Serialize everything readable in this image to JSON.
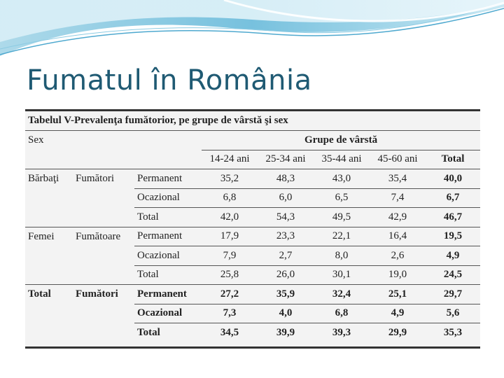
{
  "slide": {
    "title": "Fumatul în România"
  },
  "table": {
    "caption": "Tabelul V-Prevalenţa fumătorior, pe grupe de vârstă şi sex",
    "sex_header": "Sex",
    "group_header": "Grupe de vârstă",
    "columns": [
      "14-24 ani",
      "25-34 ani",
      "35-44 ani",
      "45-60 ani",
      "Total"
    ],
    "groups": [
      {
        "sex": "Bărbaţi",
        "category": "Fumători",
        "rows": [
          {
            "type": "Permanent",
            "values": [
              "35,2",
              "48,3",
              "43,0",
              "35,4",
              "40,0"
            ]
          },
          {
            "type": "Ocazional",
            "values": [
              "6,8",
              "6,0",
              "6,5",
              "7,4",
              "6,7"
            ]
          },
          {
            "type": "Total",
            "values": [
              "42,0",
              "54,3",
              "49,5",
              "42,9",
              "46,7"
            ]
          }
        ]
      },
      {
        "sex": "Femei",
        "category": "Fumătoare",
        "rows": [
          {
            "type": "Permanent",
            "values": [
              "17,9",
              "23,3",
              "22,1",
              "16,4",
              "19,5"
            ]
          },
          {
            "type": "Ocazional",
            "values": [
              "7,9",
              "2,7",
              "8,0",
              "2,6",
              "4,9"
            ]
          },
          {
            "type": "Total",
            "values": [
              "25,8",
              "26,0",
              "30,1",
              "19,0",
              "24,5"
            ]
          }
        ]
      },
      {
        "sex": "Total",
        "category": "Fumători",
        "rows": [
          {
            "type": "Permanent",
            "values": [
              "27,2",
              "35,9",
              "32,4",
              "25,1",
              "29,7"
            ]
          },
          {
            "type": "Ocazional",
            "values": [
              "7,3",
              "4,0",
              "6,8",
              "4,9",
              "5,6"
            ]
          },
          {
            "type": "Total",
            "values": [
              "34,5",
              "39,9",
              "39,3",
              "29,9",
              "35,3"
            ]
          }
        ]
      }
    ]
  }
}
